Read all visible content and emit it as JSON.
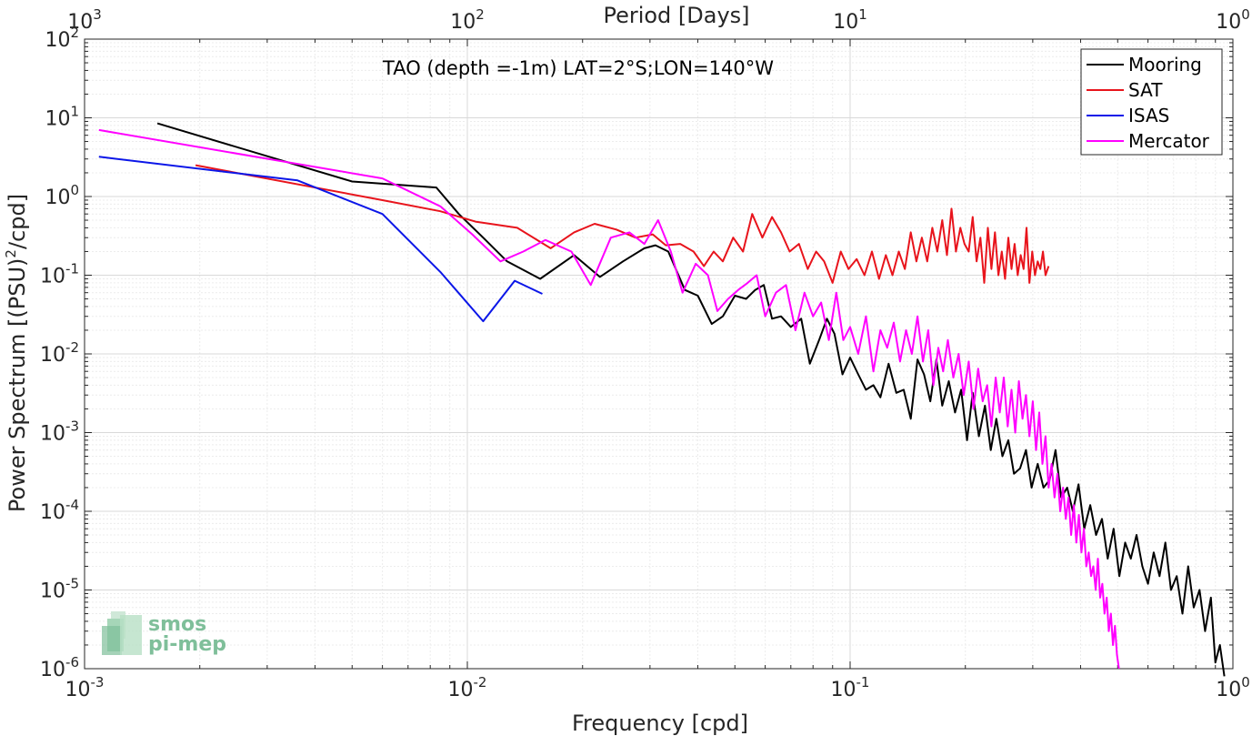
{
  "chart_data": {
    "type": "line",
    "title": "TAO (depth =-1m) LAT=2°S;LON=140°W",
    "xlabel": "Frequency [cpd]",
    "ylabel_main": "Power Spectrum [(PSU)",
    "ylabel_sup": "2",
    "ylabel_tail": "/cpd]",
    "top_axis_label": "Period [Days]",
    "xscale": "log",
    "yscale": "log",
    "xlim": [
      0.001,
      1
    ],
    "ylim": [
      1e-06,
      100
    ],
    "grid": true,
    "legend_position": "top-right",
    "x_ticks": [
      {
        "value": 0.001,
        "base": "10",
        "exp": "-3"
      },
      {
        "value": 0.01,
        "base": "10",
        "exp": "-2"
      },
      {
        "value": 0.1,
        "base": "10",
        "exp": "-1"
      },
      {
        "value": 1,
        "base": "10",
        "exp": "0"
      }
    ],
    "top_ticks": [
      {
        "value": 0.001,
        "base": "10",
        "exp": "3"
      },
      {
        "value": 0.01,
        "base": "10",
        "exp": "2"
      },
      {
        "value": 0.1,
        "base": "10",
        "exp": "1"
      },
      {
        "value": 1,
        "base": "10",
        "exp": "0"
      }
    ],
    "y_ticks": [
      {
        "value": 1e-06,
        "base": "10",
        "exp": "-6"
      },
      {
        "value": 1e-05,
        "base": "10",
        "exp": "-5"
      },
      {
        "value": 0.0001,
        "base": "10",
        "exp": "-4"
      },
      {
        "value": 0.001,
        "base": "10",
        "exp": "-3"
      },
      {
        "value": 0.01,
        "base": "10",
        "exp": "-2"
      },
      {
        "value": 0.1,
        "base": "10",
        "exp": "-1"
      },
      {
        "value": 1,
        "base": "10",
        "exp": "0"
      },
      {
        "value": 10,
        "base": "10",
        "exp": "1"
      },
      {
        "value": 100,
        "base": "10",
        "exp": "2"
      }
    ],
    "series": [
      {
        "name": "Mooring",
        "color": "#000000",
        "x": [
          0.00155,
          0.005,
          0.0083,
          0.0095,
          0.011,
          0.0127,
          0.0155,
          0.019,
          0.0222,
          0.0255,
          0.029,
          0.031,
          0.0335,
          0.037,
          0.04,
          0.0435,
          0.0465,
          0.05,
          0.0535,
          0.0565,
          0.0595,
          0.0625,
          0.066,
          0.07,
          0.0745,
          0.0785,
          0.083,
          0.087,
          0.091,
          0.0955,
          0.1,
          0.105,
          0.11,
          0.115,
          0.12,
          0.126,
          0.132,
          0.138,
          0.144,
          0.15,
          0.156,
          0.162,
          0.168,
          0.174,
          0.181,
          0.188,
          0.195,
          0.202,
          0.209,
          0.217,
          0.225,
          0.233,
          0.241,
          0.25,
          0.259,
          0.268,
          0.278,
          0.288,
          0.298,
          0.309,
          0.32,
          0.332,
          0.344,
          0.356,
          0.369,
          0.382,
          0.395,
          0.409,
          0.424,
          0.439,
          0.455,
          0.471,
          0.488,
          0.505,
          0.523,
          0.541,
          0.56,
          0.58,
          0.6,
          0.621,
          0.643,
          0.666,
          0.689,
          0.713,
          0.738,
          0.764,
          0.79,
          0.818,
          0.846,
          0.876,
          0.9,
          0.925,
          0.95
        ],
        "y": [
          8.5,
          1.55,
          1.3,
          0.6,
          0.3,
          0.15,
          0.09,
          0.18,
          0.095,
          0.15,
          0.22,
          0.24,
          0.2,
          0.065,
          0.055,
          0.024,
          0.03,
          0.055,
          0.05,
          0.065,
          0.075,
          0.028,
          0.03,
          0.022,
          0.028,
          0.0075,
          0.015,
          0.028,
          0.018,
          0.0055,
          0.009,
          0.0055,
          0.0035,
          0.004,
          0.0028,
          0.0075,
          0.0032,
          0.0035,
          0.0015,
          0.0085,
          0.0055,
          0.0025,
          0.0085,
          0.0022,
          0.0045,
          0.0018,
          0.0035,
          0.0008,
          0.0032,
          0.0009,
          0.0022,
          0.0006,
          0.0015,
          0.0005,
          0.0008,
          0.0003,
          0.00035,
          0.0006,
          0.0002,
          0.0004,
          0.0002,
          0.00025,
          0.0006,
          0.00015,
          0.0002,
          0.0001,
          0.00022,
          6e-05,
          0.00012,
          5e-05,
          8e-05,
          2.5e-05,
          6e-05,
          1.5e-05,
          4e-05,
          2.5e-05,
          5e-05,
          2e-05,
          1.2e-05,
          3e-05,
          1.5e-05,
          4e-05,
          1e-05,
          1.5e-05,
          5e-06,
          2e-05,
          6e-06,
          1e-05,
          3e-06,
          8e-06,
          1.2e-06,
          2e-06,
          8e-07
        ]
      },
      {
        "name": "SAT",
        "color": "#e8141c",
        "x": [
          0.00195,
          0.006,
          0.0085,
          0.0105,
          0.0135,
          0.0165,
          0.019,
          0.0215,
          0.0245,
          0.0275,
          0.0305,
          0.033,
          0.036,
          0.039,
          0.0415,
          0.044,
          0.0465,
          0.0495,
          0.0525,
          0.0555,
          0.059,
          0.0625,
          0.066,
          0.0695,
          0.0735,
          0.0775,
          0.0815,
          0.0855,
          0.09,
          0.0945,
          0.099,
          0.104,
          0.109,
          0.114,
          0.119,
          0.124,
          0.129,
          0.134,
          0.139,
          0.144,
          0.149,
          0.154,
          0.159,
          0.164,
          0.169,
          0.174,
          0.179,
          0.184,
          0.189,
          0.194,
          0.199,
          0.204,
          0.209,
          0.214,
          0.219,
          0.224,
          0.229,
          0.234,
          0.239,
          0.244,
          0.249,
          0.254,
          0.259,
          0.264,
          0.269,
          0.274,
          0.279,
          0.284,
          0.289,
          0.294,
          0.299,
          0.304,
          0.309,
          0.314,
          0.319,
          0.324,
          0.33
        ],
        "y": [
          2.5,
          0.9,
          0.65,
          0.48,
          0.4,
          0.22,
          0.35,
          0.45,
          0.38,
          0.3,
          0.33,
          0.24,
          0.25,
          0.2,
          0.13,
          0.2,
          0.15,
          0.3,
          0.2,
          0.6,
          0.3,
          0.55,
          0.35,
          0.2,
          0.25,
          0.12,
          0.2,
          0.15,
          0.08,
          0.2,
          0.12,
          0.16,
          0.1,
          0.2,
          0.09,
          0.18,
          0.1,
          0.2,
          0.12,
          0.35,
          0.15,
          0.3,
          0.15,
          0.4,
          0.2,
          0.5,
          0.18,
          0.7,
          0.2,
          0.4,
          0.25,
          0.2,
          0.55,
          0.15,
          0.3,
          0.08,
          0.4,
          0.12,
          0.35,
          0.1,
          0.2,
          0.09,
          0.3,
          0.12,
          0.25,
          0.1,
          0.18,
          0.12,
          0.4,
          0.08,
          0.2,
          0.1,
          0.15,
          0.12,
          0.2,
          0.1,
          0.13
        ]
      },
      {
        "name": "ISAS",
        "color": "#0b16e8",
        "x": [
          0.00109,
          0.0036,
          0.006,
          0.0085,
          0.011,
          0.0133,
          0.0157
        ],
        "y": [
          3.2,
          1.6,
          0.6,
          0.11,
          0.026,
          0.085,
          0.058
        ]
      },
      {
        "name": "Mercator",
        "color": "#ff00ff",
        "x": [
          0.00109,
          0.006,
          0.0085,
          0.0103,
          0.0122,
          0.014,
          0.016,
          0.0187,
          0.021,
          0.0237,
          0.0265,
          0.029,
          0.0315,
          0.034,
          0.0365,
          0.0395,
          0.0425,
          0.045,
          0.048,
          0.051,
          0.054,
          0.057,
          0.06,
          0.064,
          0.068,
          0.072,
          0.076,
          0.08,
          0.084,
          0.088,
          0.092,
          0.096,
          0.1,
          0.105,
          0.11,
          0.115,
          0.12,
          0.125,
          0.13,
          0.135,
          0.14,
          0.145,
          0.15,
          0.155,
          0.16,
          0.165,
          0.17,
          0.175,
          0.18,
          0.186,
          0.192,
          0.198,
          0.204,
          0.21,
          0.216,
          0.222,
          0.228,
          0.234,
          0.24,
          0.246,
          0.252,
          0.258,
          0.264,
          0.27,
          0.276,
          0.282,
          0.288,
          0.294,
          0.3,
          0.306,
          0.312,
          0.318,
          0.324,
          0.33,
          0.336,
          0.342,
          0.348,
          0.354,
          0.36,
          0.366,
          0.372,
          0.378,
          0.384,
          0.39,
          0.396,
          0.402,
          0.408,
          0.414,
          0.42,
          0.426,
          0.432,
          0.438,
          0.444,
          0.45,
          0.456,
          0.462,
          0.468,
          0.474,
          0.48,
          0.486,
          0.492,
          0.498,
          0.504
        ],
        "y": [
          7.0,
          1.7,
          0.75,
          0.33,
          0.15,
          0.2,
          0.28,
          0.2,
          0.075,
          0.3,
          0.35,
          0.25,
          0.5,
          0.2,
          0.06,
          0.14,
          0.1,
          0.035,
          0.05,
          0.065,
          0.08,
          0.1,
          0.03,
          0.06,
          0.075,
          0.02,
          0.06,
          0.03,
          0.045,
          0.015,
          0.06,
          0.015,
          0.022,
          0.01,
          0.03,
          0.006,
          0.02,
          0.012,
          0.025,
          0.008,
          0.02,
          0.01,
          0.03,
          0.008,
          0.02,
          0.004,
          0.012,
          0.006,
          0.015,
          0.005,
          0.01,
          0.003,
          0.008,
          0.002,
          0.0065,
          0.0025,
          0.004,
          0.0012,
          0.005,
          0.0018,
          0.005,
          0.0012,
          0.0035,
          0.001,
          0.0045,
          0.0015,
          0.003,
          0.0009,
          0.0025,
          0.0006,
          0.0018,
          0.0004,
          0.0009,
          0.0002,
          0.0004,
          0.00015,
          0.0003,
          0.0001,
          0.0002,
          8e-05,
          0.00015,
          5e-05,
          0.00012,
          4e-05,
          9e-05,
          3e-05,
          6e-05,
          2e-05,
          3e-05,
          1.5e-05,
          2e-05,
          1e-05,
          2.5e-05,
          8e-06,
          1.2e-05,
          5e-06,
          8e-06,
          3e-06,
          5e-06,
          2e-06,
          3.5e-06,
          1.5e-06,
          1e-06
        ]
      }
    ]
  },
  "logo": {
    "line1": "smos",
    "line2": "pi-mep"
  }
}
